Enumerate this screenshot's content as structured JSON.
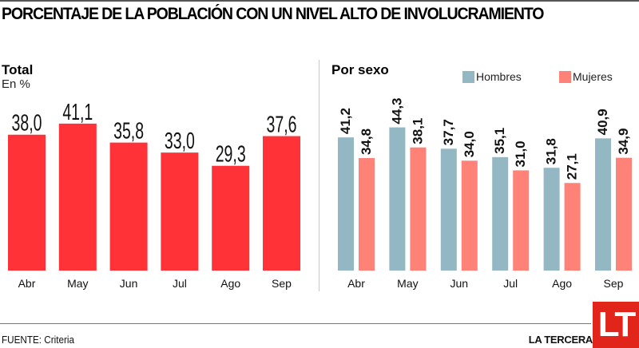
{
  "header": {
    "title": "PORCENTAJE DE LA POBLACIÓN CON UN NIVEL ALTO DE INVOLUCRAMIENTO"
  },
  "left_panel": {
    "title": "Total",
    "subtitle": "En %"
  },
  "right_panel": {
    "title": "Por sexo",
    "legend": [
      {
        "label": "Hombres",
        "color": "#94b7c4"
      },
      {
        "label": "Mujeres",
        "color": "#ff8279"
      }
    ]
  },
  "footer": {
    "source": "FUENTE: Criteria",
    "brand": "LA TERCERA",
    "logo_text": "LT"
  },
  "colors": {
    "total_bar": "#fe3237",
    "hombres": "#94b7c4",
    "mujeres": "#ff8279",
    "brand_red": "#e1251b"
  },
  "chart_data": [
    {
      "type": "bar",
      "title": "Total",
      "subtitle": "En %",
      "xlabel": "",
      "ylabel": "%",
      "categories": [
        "Abr",
        "May",
        "Jun",
        "Jul",
        "Ago",
        "Sep"
      ],
      "values": [
        38.0,
        41.1,
        35.8,
        33.0,
        29.3,
        37.6
      ],
      "value_labels": [
        "38,0",
        "41,1",
        "35,8",
        "33,0",
        "29,3",
        "37,6"
      ],
      "ylim": [
        0,
        45
      ],
      "grid": false
    },
    {
      "type": "bar",
      "title": "Por sexo",
      "xlabel": "",
      "ylabel": "%",
      "categories": [
        "Abr",
        "May",
        "Jun",
        "Jul",
        "Ago",
        "Sep"
      ],
      "series": [
        {
          "name": "Hombres",
          "values": [
            41.2,
            44.3,
            37.7,
            35.1,
            31.8,
            40.9
          ],
          "value_labels": [
            "41,2",
            "44,3",
            "37,7",
            "35,1",
            "31,8",
            "40,9"
          ]
        },
        {
          "name": "Mujeres",
          "values": [
            34.8,
            38.1,
            34.0,
            31.0,
            27.1,
            34.9
          ],
          "value_labels": [
            "34,8",
            "38,1",
            "34,0",
            "31,0",
            "27,1",
            "34,9"
          ]
        }
      ],
      "legend": "top-right",
      "ylim": [
        0,
        50
      ],
      "grid": false
    }
  ]
}
